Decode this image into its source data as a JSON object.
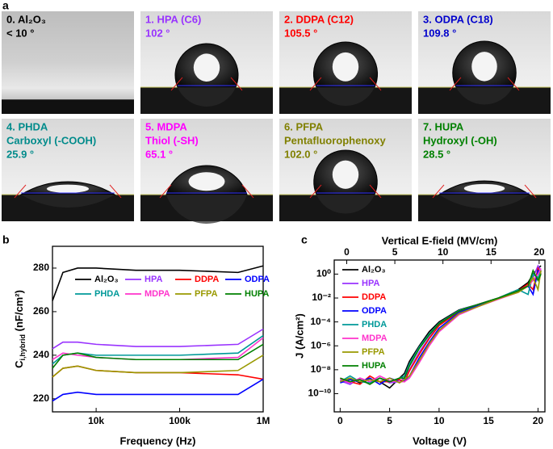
{
  "panel_labels": [
    "a",
    "b",
    "c"
  ],
  "photos": [
    {
      "lines": [
        "0. Al₂O₃",
        "< 10 °"
      ],
      "color": "#000000"
    },
    {
      "lines": [
        "1. HPA (C6)",
        "102 °"
      ],
      "color": "#9933ff"
    },
    {
      "lines": [
        "2. DDPA (C12)",
        "105.5 °"
      ],
      "color": "#ff0000"
    },
    {
      "lines": [
        "3. ODPA (C18)",
        "109.8 °"
      ],
      "color": "#0000cc"
    },
    {
      "lines": [
        "4. PHDA",
        "Carboxyl (-COOH)",
        "25.9 °"
      ],
      "color": "#008b8b"
    },
    {
      "lines": [
        "5. MDPA",
        "Thiol (-SH)",
        "65.1 °"
      ],
      "color": "#ff00ff"
    },
    {
      "lines": [
        "6. PFPA",
        "Pentafluorophenoxy",
        "102.0 °"
      ],
      "color": "#808000"
    },
    {
      "lines": [
        "7. HUPA",
        "Hydroxyl (-OH)",
        "28.5 °"
      ],
      "color": "#008000"
    }
  ],
  "chart_data": [
    {
      "type": "line",
      "xlog": true,
      "x": [
        3000,
        4000,
        6000,
        10000,
        30000,
        100000,
        500000,
        1000000
      ],
      "xlim": [
        3000,
        1000000
      ],
      "xticks": [
        {
          "value": 10000,
          "label": "10k"
        },
        {
          "value": 100000,
          "label": "100k"
        },
        {
          "value": 1000000,
          "label": "1M"
        }
      ],
      "ylim": [
        214,
        290
      ],
      "yticks": [
        220,
        240,
        260,
        280
      ],
      "xlabel": "Frequency (Hz)",
      "ylabel": {
        "main": "C",
        "sub": "i,hybrid",
        "rest": " (nF/cm²)"
      },
      "legend": "top",
      "series": [
        {
          "name": "Al₂O₃",
          "color": "#000000",
          "values": [
            265,
            278,
            280,
            280,
            279,
            279,
            278,
            281
          ]
        },
        {
          "name": "HPA",
          "color": "#9933ff",
          "values": [
            243,
            246,
            246,
            245,
            244,
            244,
            245,
            252
          ]
        },
        {
          "name": "DDPA",
          "color": "#ff0000",
          "values": [
            230,
            234,
            235,
            233,
            232,
            232,
            231,
            229
          ]
        },
        {
          "name": "ODPA",
          "color": "#0000ff",
          "values": [
            219,
            222,
            223,
            222,
            222,
            222,
            222,
            229
          ]
        },
        {
          "name": "PHDA",
          "color": "#009999",
          "values": [
            236,
            240,
            241,
            240,
            240,
            240,
            241,
            249
          ]
        },
        {
          "name": "MDPA",
          "color": "#ff33cc",
          "values": [
            238,
            241,
            240,
            239,
            238,
            238,
            239,
            248
          ]
        },
        {
          "name": "PFPA",
          "color": "#999900",
          "values": [
            230,
            234,
            235,
            233,
            232,
            232,
            233,
            240
          ]
        },
        {
          "name": "HUPA",
          "color": "#008000",
          "values": [
            234,
            240,
            241,
            239,
            238,
            238,
            238,
            245
          ]
        }
      ]
    },
    {
      "type": "line",
      "ylog": true,
      "x": [
        0,
        1,
        2,
        3,
        4,
        5,
        6,
        6.5,
        7,
        8,
        9,
        10,
        12,
        14,
        16,
        18,
        19,
        19.5,
        20,
        20.3
      ],
      "xlim": [
        -0.6,
        20.7
      ],
      "xticks": [
        0,
        5,
        10,
        15,
        20
      ],
      "x2lim": [
        -1.3,
        20.6
      ],
      "x2ticks": [
        0,
        5,
        10,
        15,
        20
      ],
      "x2label": "Vertical E-field (MV/cm)",
      "ylim": [
        3e-12,
        15
      ],
      "yticks": [
        {
          "value": 1e-10,
          "label": "10⁻¹⁰"
        },
        {
          "value": 1e-08,
          "label": "10⁻⁸"
        },
        {
          "value": 1e-06,
          "label": "10⁻⁶"
        },
        {
          "value": 0.0001,
          "label": "10⁻⁴"
        },
        {
          "value": 0.01,
          "label": "10⁻²"
        },
        {
          "value": 1,
          "label": "10⁰"
        }
      ],
      "xlabel": "Voltage (V)",
      "ylabel": "J (A/cm²)",
      "legend": "upper left",
      "series": [
        {
          "name": "Al₂O₃",
          "color": "#000000",
          "values": [
            1e-09,
            2e-09,
            8e-10,
            1.5e-09,
            1e-09,
            3e-10,
            2e-09,
            5e-09,
            5e-08,
            1e-06,
            1.5e-05,
            0.0001,
            0.001,
            0.003,
            0.01,
            0.05,
            0.2,
            1,
            3,
            5
          ]
        },
        {
          "name": "HPA",
          "color": "#9933ff",
          "values": [
            1.2e-09,
            6e-10,
            2e-09,
            1e-09,
            2e-09,
            8e-10,
            1e-09,
            2e-09,
            1e-08,
            3e-07,
            5e-06,
            6e-05,
            0.0008,
            0.003,
            0.01,
            0.04,
            0.1,
            0.5,
            5,
            2
          ]
        },
        {
          "name": "DDPA",
          "color": "#ff0000",
          "values": [
            2e-09,
            1e-09,
            6e-10,
            3e-09,
            1e-09,
            1e-09,
            1.5e-09,
            1e-09,
            8e-09,
            2e-07,
            4e-06,
            5e-05,
            0.0007,
            0.003,
            0.01,
            0.04,
            0.15,
            0.05,
            3,
            1
          ]
        },
        {
          "name": "ODPA",
          "color": "#0000ff",
          "values": [
            8e-10,
            1.5e-09,
            1e-09,
            2e-09,
            6e-10,
            2e-09,
            1e-09,
            1.2e-09,
            3e-09,
            1e-07,
            2e-06,
            3e-05,
            0.0006,
            0.0025,
            0.009,
            0.04,
            0.1,
            0.02,
            2,
            1
          ]
        },
        {
          "name": "PHDA",
          "color": "#009999",
          "values": [
            1e-09,
            3e-09,
            1e-09,
            8e-10,
            2e-09,
            1e-09,
            2e-09,
            3e-09,
            3e-08,
            8e-07,
            1e-05,
            8e-05,
            0.0009,
            0.003,
            0.01,
            0.05,
            0.02,
            1,
            0.5,
            2
          ]
        },
        {
          "name": "MDPA",
          "color": "#ff33cc",
          "values": [
            1.5e-09,
            8e-10,
            2e-09,
            1e-09,
            3e-09,
            1.2e-09,
            1e-09,
            1e-09,
            2e-09,
            4e-08,
            1e-06,
            1.5e-05,
            0.0004,
            0.002,
            0.008,
            0.03,
            0.1,
            0.3,
            1,
            3
          ]
        },
        {
          "name": "PFPA",
          "color": "#999900",
          "values": [
            1e-09,
            2e-09,
            1e-09,
            1.5e-09,
            1e-09,
            2e-09,
            8e-10,
            1.5e-09,
            3e-09,
            6e-08,
            1.5e-06,
            2e-05,
            0.0005,
            0.002,
            0.009,
            0.03,
            0.1,
            0.5,
            0.05,
            2
          ]
        },
        {
          "name": "HUPA",
          "color": "#008000",
          "values": [
            2e-09,
            1e-09,
            1.5e-09,
            6e-10,
            2e-09,
            1e-09,
            2e-09,
            2e-09,
            2e-08,
            6e-07,
            8e-06,
            7e-05,
            0.0008,
            0.003,
            0.01,
            0.04,
            0.1,
            2,
            0.3,
            1
          ]
        }
      ]
    }
  ]
}
